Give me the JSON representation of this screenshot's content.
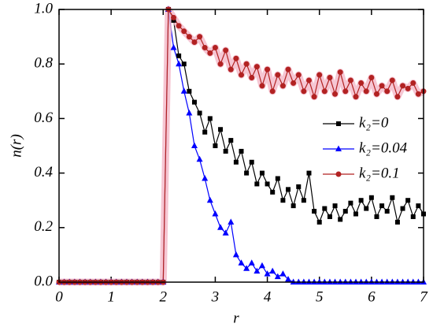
{
  "chart_data": {
    "type": "line",
    "xlabel": "r",
    "ylabel": "n(r)",
    "x": [
      0,
      0.1,
      0.2,
      0.3,
      0.4,
      0.5,
      0.6,
      0.7,
      0.8,
      0.9,
      1.0,
      1.1,
      1.2,
      1.3,
      1.4,
      1.5,
      1.6,
      1.7,
      1.8,
      1.9,
      2.0,
      2.1,
      2.2,
      2.3,
      2.4,
      2.5,
      2.6,
      2.7,
      2.8,
      2.9,
      3.0,
      3.1,
      3.2,
      3.3,
      3.4,
      3.5,
      3.6,
      3.7,
      3.8,
      3.9,
      4.0,
      4.1,
      4.2,
      4.3,
      4.4,
      4.5,
      4.6,
      4.7,
      4.8,
      4.9,
      5.0,
      5.1,
      5.2,
      5.3,
      5.4,
      5.5,
      5.6,
      5.7,
      5.8,
      5.9,
      6.0,
      6.1,
      6.2,
      6.3,
      6.4,
      6.5,
      6.6,
      6.7,
      6.8,
      6.9,
      7.0
    ],
    "series": [
      {
        "name": "k₂=0",
        "color": "#000000",
        "marker": "square",
        "values": [
          0,
          0,
          0,
          0,
          0,
          0,
          0,
          0,
          0,
          0,
          0,
          0,
          0,
          0,
          0,
          0,
          0,
          0,
          0,
          0,
          0,
          1.0,
          0.96,
          0.83,
          0.8,
          0.7,
          0.66,
          0.62,
          0.55,
          0.6,
          0.5,
          0.56,
          0.48,
          0.52,
          0.44,
          0.48,
          0.4,
          0.44,
          0.36,
          0.4,
          0.36,
          0.33,
          0.38,
          0.3,
          0.34,
          0.28,
          0.35,
          0.3,
          0.4,
          0.26,
          0.22,
          0.27,
          0.24,
          0.28,
          0.23,
          0.26,
          0.29,
          0.25,
          0.3,
          0.27,
          0.31,
          0.24,
          0.28,
          0.26,
          0.31,
          0.22,
          0.27,
          0.3,
          0.24,
          0.28,
          0.25
        ]
      },
      {
        "name": "k₂=0.04",
        "color": "#0000ff",
        "marker": "triangle",
        "values": [
          0,
          0,
          0,
          0,
          0,
          0,
          0,
          0,
          0,
          0,
          0,
          0,
          0,
          0,
          0,
          0,
          0,
          0,
          0,
          0,
          0,
          1.0,
          0.86,
          0.8,
          0.7,
          0.62,
          0.5,
          0.45,
          0.38,
          0.3,
          0.25,
          0.2,
          0.18,
          0.22,
          0.1,
          0.07,
          0.05,
          0.07,
          0.04,
          0.06,
          0.03,
          0.04,
          0.02,
          0.03,
          0.01,
          0,
          0,
          0,
          0,
          0,
          0,
          0,
          0,
          0,
          0,
          0,
          0,
          0,
          0,
          0,
          0,
          0,
          0,
          0,
          0,
          0,
          0,
          0,
          0,
          0,
          0
        ]
      },
      {
        "name": "k₂=0.1",
        "color": "#b22222",
        "marker": "circle",
        "band": "#f4b8c8",
        "values": [
          0,
          0,
          0,
          0,
          0,
          0,
          0,
          0,
          0,
          0,
          0,
          0,
          0,
          0,
          0,
          0,
          0,
          0,
          0,
          0,
          0,
          1.0,
          0.97,
          0.94,
          0.92,
          0.9,
          0.88,
          0.9,
          0.86,
          0.84,
          0.86,
          0.8,
          0.85,
          0.78,
          0.82,
          0.76,
          0.8,
          0.75,
          0.79,
          0.72,
          0.78,
          0.7,
          0.76,
          0.72,
          0.78,
          0.73,
          0.76,
          0.7,
          0.74,
          0.68,
          0.76,
          0.7,
          0.75,
          0.69,
          0.77,
          0.7,
          0.74,
          0.68,
          0.73,
          0.7,
          0.75,
          0.69,
          0.72,
          0.7,
          0.74,
          0.68,
          0.72,
          0.71,
          0.73,
          0.69,
          0.7
        ]
      }
    ],
    "xlim": [
      0,
      7
    ],
    "xticks": [
      0,
      1,
      2,
      3,
      4,
      5,
      6,
      7
    ],
    "ylim": [
      0,
      1
    ],
    "yticks": [
      {
        "value": 0,
        "label": "0.0"
      },
      0.2,
      0.4,
      0.6,
      0.8,
      {
        "value": 1,
        "label": "1.0"
      }
    ],
    "legend": "right"
  }
}
